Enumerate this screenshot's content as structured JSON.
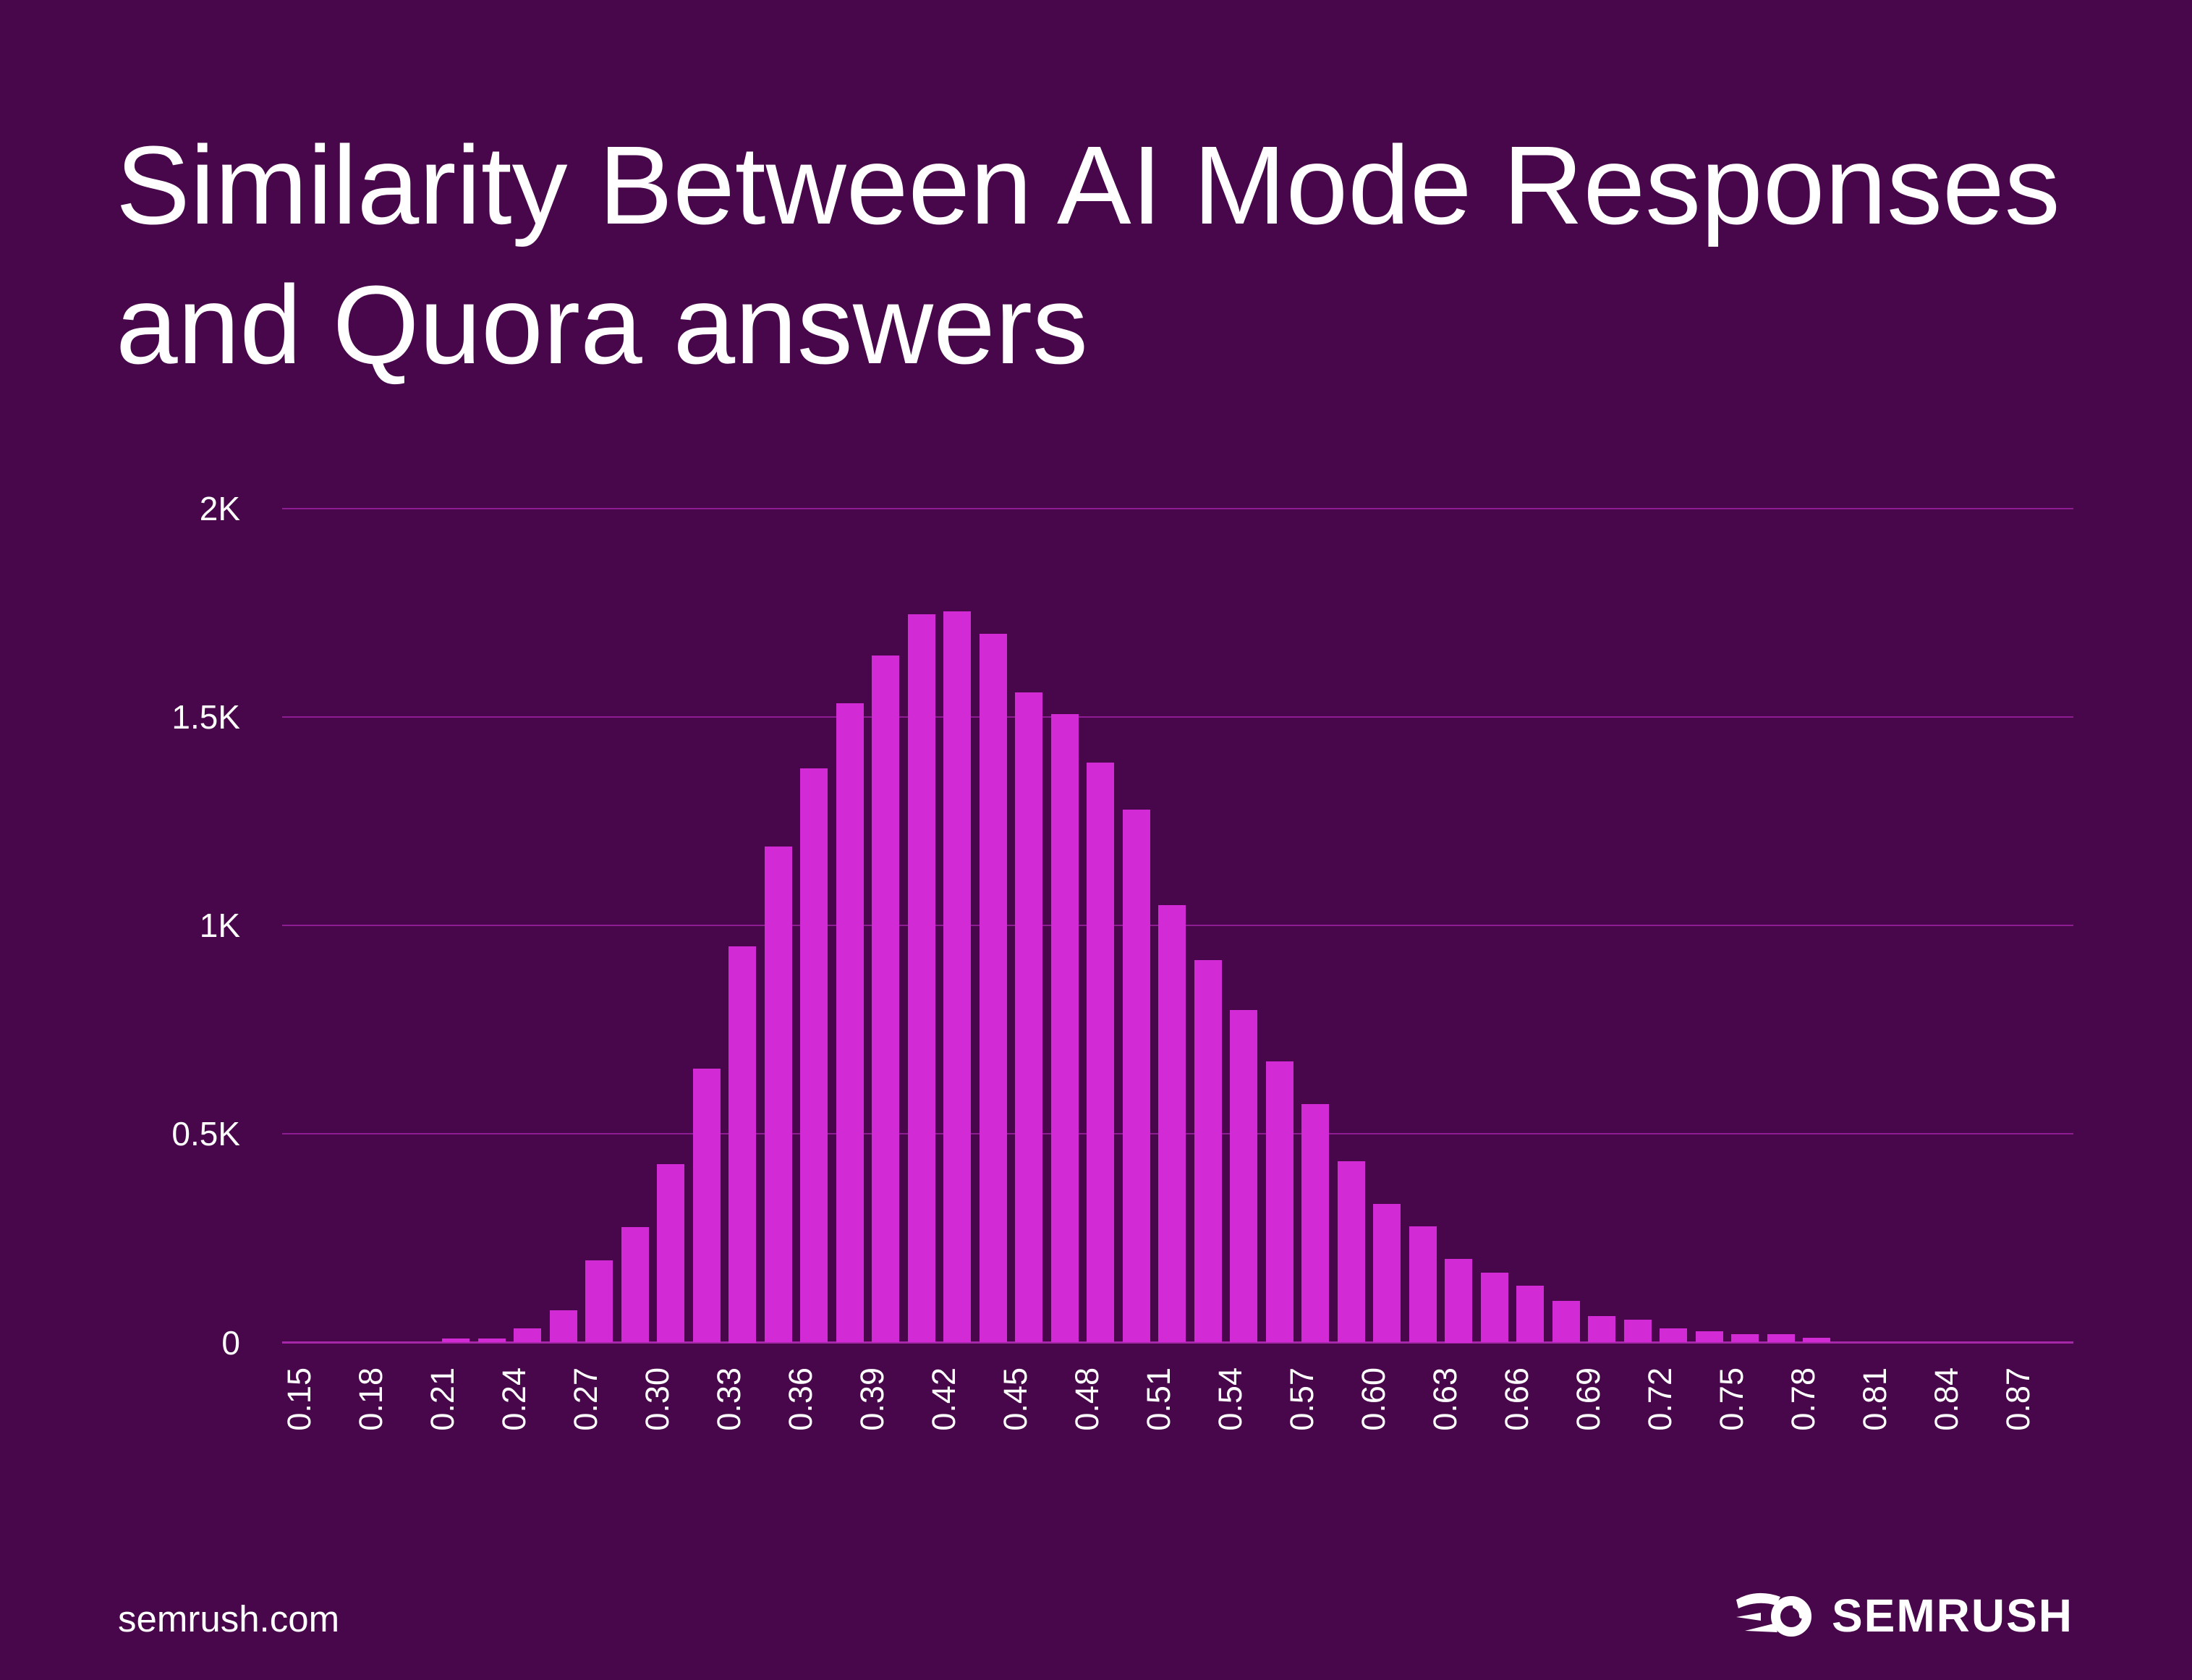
{
  "page": {
    "background": "#48074B"
  },
  "title": {
    "line1": "Similarity Between AI Mode Responses",
    "line2": "and Quora answers"
  },
  "footer": {
    "website": "semrush.com",
    "brand": "SEMRUSH"
  },
  "chart_data": {
    "type": "bar",
    "title": "Similarity Between AI Mode Responses and Quora answers",
    "xlabel": "",
    "ylabel": "",
    "legend": "none",
    "grid": "horizontal",
    "ylim": [
      0,
      2000
    ],
    "y_ticks": [
      {
        "label": "2K",
        "value": 2000
      },
      {
        "label": "1.5K",
        "value": 1500
      },
      {
        "label": "1K",
        "value": 1000
      },
      {
        "label": "0.5K",
        "value": 500
      },
      {
        "label": "0",
        "value": 0
      }
    ],
    "x_tick_labels": [
      "0.15",
      "0.18",
      "0.21",
      "0.24",
      "0.27",
      "0.30",
      "0.33",
      "0.36",
      "0.39",
      "0.42",
      "0.45",
      "0.48",
      "0.51",
      "0.54",
      "0.57",
      "0.60",
      "0.63",
      "0.66",
      "0.69",
      "0.72",
      "0.75",
      "0.78",
      "0.81",
      "0.84",
      "0.87"
    ],
    "x_tick_start": 0.15,
    "x_tick_step": 0.03,
    "bin_start": 0.21,
    "bin_step": 0.015,
    "values": [
      9,
      10,
      33,
      77,
      197,
      277,
      428,
      656,
      950,
      1190,
      1377,
      1533,
      1648,
      1747,
      1753,
      1699,
      1559,
      1507,
      1391,
      1278,
      1049,
      918,
      798,
      674,
      571,
      434,
      333,
      278,
      200,
      168,
      137,
      99,
      64,
      54,
      33,
      27,
      20,
      20,
      12
    ],
    "colors": {
      "background": "#48074B",
      "bar": "#D22BD6",
      "gridline": "#8E1D93",
      "baseline": "#A727AB",
      "text": "#FFFFFF"
    }
  }
}
